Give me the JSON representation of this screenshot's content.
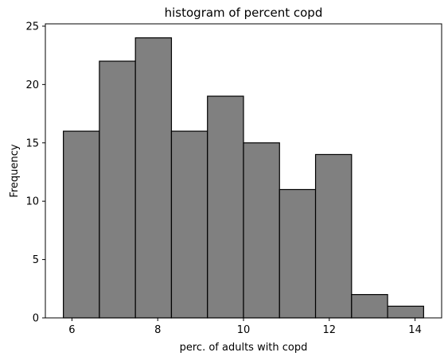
{
  "chart_data": {
    "type": "bar",
    "subtype": "histogram",
    "title": "histogram of percent copd",
    "xlabel": "perc. of adults with copd",
    "ylabel": "Frequency",
    "bin_edges": [
      5.8,
      6.64,
      7.48,
      8.32,
      9.16,
      10.0,
      10.84,
      11.68,
      12.52,
      13.36,
      14.2
    ],
    "values": [
      16,
      22,
      24,
      16,
      19,
      15,
      11,
      14,
      2,
      1
    ],
    "xlim": [
      5.38,
      14.62
    ],
    "ylim": [
      0,
      25.2
    ],
    "xticks": [
      6,
      8,
      10,
      12,
      14
    ],
    "yticks": [
      0,
      5,
      10,
      15,
      20,
      25
    ],
    "grid": false,
    "legend": "none",
    "bar_color": "#808080",
    "edge_color": "#000000"
  }
}
